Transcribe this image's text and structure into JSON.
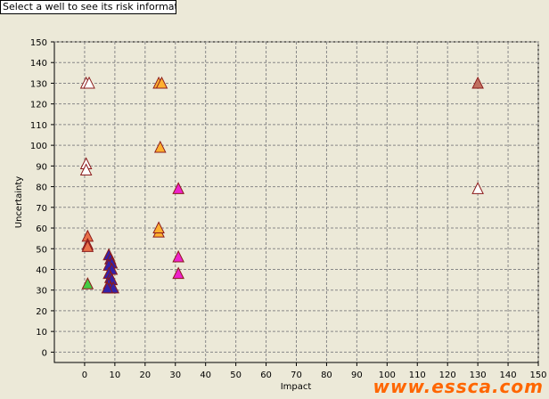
{
  "info_box": {
    "text": "Select a well to see its risk information"
  },
  "watermark": {
    "text": "www.essca.com"
  },
  "chart_data": {
    "type": "scatter",
    "title": "",
    "xlabel": "Impact",
    "ylabel": "Uncertainty",
    "xlim": [
      -10,
      150
    ],
    "ylim": [
      -5,
      150
    ],
    "xticks": [
      0,
      10,
      20,
      30,
      40,
      50,
      60,
      70,
      80,
      90,
      100,
      110,
      120,
      130,
      140,
      150
    ],
    "yticks": [
      0,
      10,
      20,
      30,
      40,
      50,
      60,
      70,
      80,
      90,
      100,
      110,
      120,
      130,
      140,
      150
    ],
    "grid": true,
    "marker": "triangle",
    "points": [
      {
        "x": 0.5,
        "y": 130,
        "color": "#ffffff"
      },
      {
        "x": 1.5,
        "y": 130,
        "color": "#ffffff"
      },
      {
        "x": 0.5,
        "y": 91,
        "color": "#ffffff"
      },
      {
        "x": 0.5,
        "y": 88,
        "color": "#ffffff"
      },
      {
        "x": 1,
        "y": 56,
        "color": "#e8704a"
      },
      {
        "x": 1,
        "y": 52,
        "color": "#e8704a"
      },
      {
        "x": 1,
        "y": 51,
        "color": "#e8704a"
      },
      {
        "x": 1,
        "y": 33,
        "color": "#44cc44"
      },
      {
        "x": 24.5,
        "y": 130,
        "color": "#ffb030"
      },
      {
        "x": 25.5,
        "y": 130,
        "color": "#ffb030"
      },
      {
        "x": 25,
        "y": 99,
        "color": "#ffb030"
      },
      {
        "x": 24.5,
        "y": 58,
        "color": "#ffb030"
      },
      {
        "x": 24.5,
        "y": 60,
        "color": "#ffb030"
      },
      {
        "x": 31,
        "y": 79,
        "color": "#ee22cc"
      },
      {
        "x": 31,
        "y": 46,
        "color": "#ee22cc"
      },
      {
        "x": 31,
        "y": 38,
        "color": "#ee22cc"
      },
      {
        "x": 130,
        "y": 130,
        "color": "#c07060"
      },
      {
        "x": 130,
        "y": 79,
        "color": "#ffffff"
      },
      {
        "x": 8,
        "y": 47,
        "color": "#3322aa"
      },
      {
        "x": 8.5,
        "y": 45,
        "color": "#3322aa"
      },
      {
        "x": 9,
        "y": 43,
        "color": "#3322aa"
      },
      {
        "x": 8,
        "y": 42,
        "color": "#3322aa"
      },
      {
        "x": 9,
        "y": 40,
        "color": "#3322aa"
      },
      {
        "x": 8,
        "y": 38,
        "color": "#3322aa"
      },
      {
        "x": 8.5,
        "y": 36,
        "color": "#3322aa"
      },
      {
        "x": 9,
        "y": 35,
        "color": "#3322aa"
      },
      {
        "x": 8,
        "y": 33,
        "color": "#3322aa"
      },
      {
        "x": 8.5,
        "y": 31,
        "color": "#3322aa"
      },
      {
        "x": 9.5,
        "y": 31,
        "color": "#3322aa"
      },
      {
        "x": 7.5,
        "y": 31,
        "color": "#3322aa"
      }
    ]
  }
}
